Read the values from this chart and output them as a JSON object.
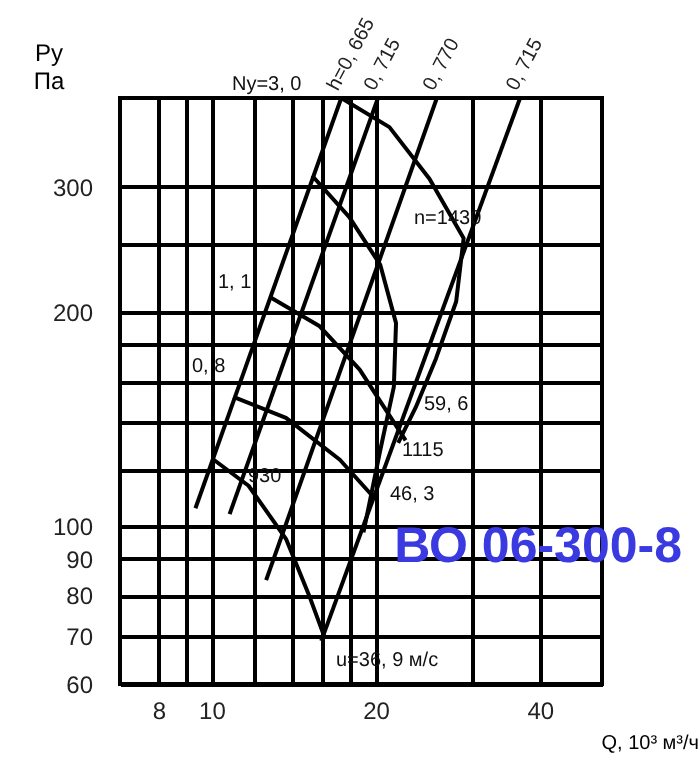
{
  "chart_data": {
    "type": "line",
    "title": "ВО 06-300-8",
    "xlabel": "Q, 10³ м³/ч",
    "ylabel": "Ру Па",
    "log": "xy",
    "grid": true,
    "marker": "none",
    "line_style": "solid",
    "xlim": [
      6.8,
      52
    ],
    "ylim": [
      60,
      400
    ],
    "xticks": [
      8,
      {
        "value": 9,
        "label": null
      },
      10,
      {
        "value": 12,
        "label": null
      },
      {
        "value": 14,
        "label": null
      },
      {
        "value": 16,
        "label": null
      },
      {
        "value": 18,
        "label": null
      },
      20,
      {
        "value": 30,
        "label": null
      },
      40
    ],
    "yticks": [
      60,
      70,
      80,
      90,
      100,
      {
        "value": 120,
        "label": null
      },
      {
        "value": 140,
        "label": null
      },
      {
        "value": 160,
        "label": null
      },
      {
        "value": 180,
        "label": null
      },
      200,
      {
        "value": 250,
        "label": null
      },
      300
    ],
    "series": [
      {
        "name": "h=0, 665",
        "color": "#000000",
        "x": [
          17.3,
          9.35
        ],
        "values": [
          400,
          106
        ]
      },
      {
        "name": "0, 715",
        "color": "#000000",
        "x": [
          20.2,
          10.8
        ],
        "values": [
          400,
          104
        ]
      },
      {
        "name": "0, 770",
        "color": "#000000",
        "x": [
          25.9,
          12.6
        ],
        "values": [
          400,
          84
        ]
      },
      {
        "name": "0, 715",
        "color": "#000000",
        "x": [
          36.8,
          15.9
        ],
        "values": [
          400,
          69
        ]
      },
      {
        "color": "#000000",
        "x": [
          17.3,
          21.2,
          25.1,
          29.0,
          28.1,
          25.8,
          23.7,
          22.0
        ],
        "values": [
          400,
          364,
          308,
          254,
          207,
          172,
          147,
          131
        ]
      },
      {
        "color": "#000000",
        "x": [
          15.3,
          17.9,
          20.4,
          21.8,
          21.6,
          20.4,
          19.0
        ],
        "values": [
          311,
          272,
          233,
          193,
          157,
          128,
          98
        ]
      },
      {
        "color": "#000000",
        "x": [
          10.1,
          11.7,
          13.7,
          15.1,
          16.1
        ],
        "values": [
          124,
          114,
          96,
          80,
          70
        ]
      },
      {
        "color": "#000000",
        "x": [
          12.8,
          15.8,
          18.7,
          22.7
        ],
        "values": [
          210,
          191,
          166,
          132
        ]
      },
      {
        "color": "#000000",
        "x": [
          10.97,
          13.7,
          17.2,
          19.8
        ],
        "values": [
          152,
          142,
          124,
          110
        ]
      }
    ],
    "annotations": [
      "Ny=3, 0",
      "n=1430",
      "1, 1",
      "0, 8",
      "59, 6",
      "1115",
      "930",
      "46, 3",
      "u=36, 9 м/с"
    ]
  }
}
